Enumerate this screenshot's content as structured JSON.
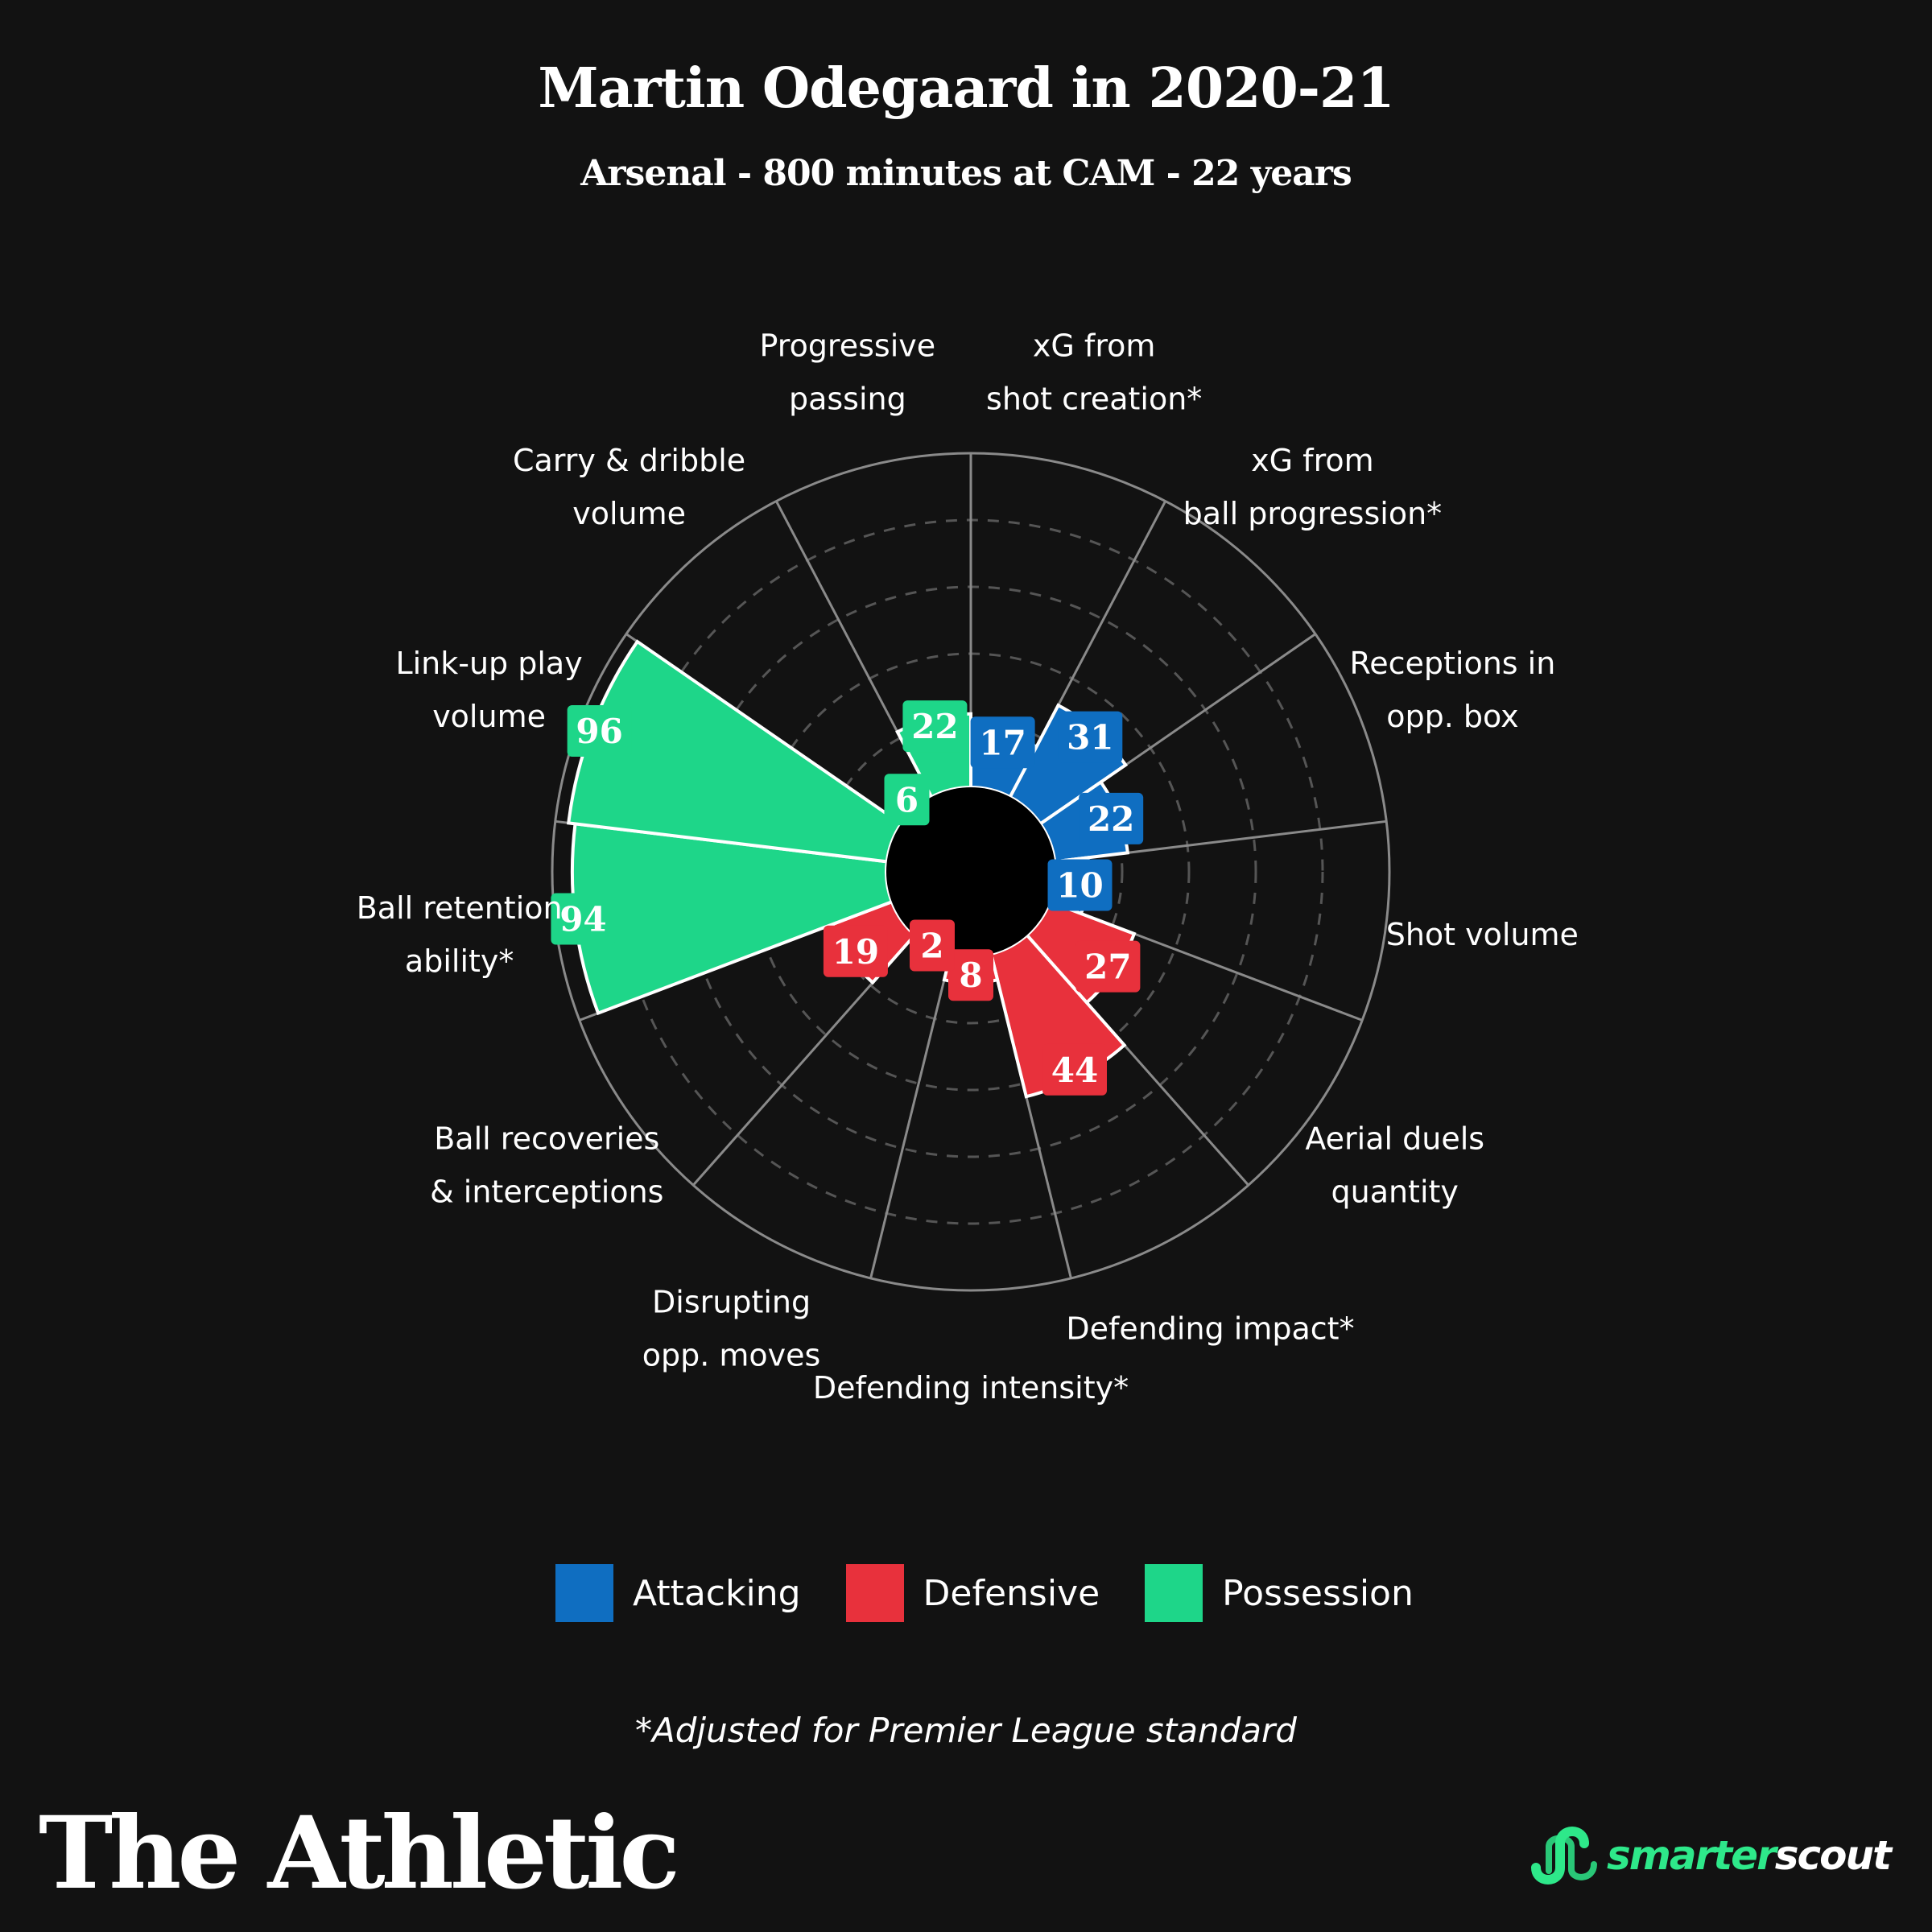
{
  "header": {
    "title": "Martin Odegaard in 2020-21",
    "subtitle": "Arsenal - 800 minutes at CAM - 22 years"
  },
  "colors": {
    "Attacking": "#0f6ec1",
    "Defensive": "#e8313c",
    "Possession": "#1ed689",
    "background": "#121212",
    "grid": "#8a8a8a"
  },
  "chart_data": {
    "type": "polar-bar",
    "title": "Martin Odegaard in 2020-21",
    "subtitle": "Arsenal - 800 minutes at CAM - 22 years",
    "rlim": [
      0,
      100
    ],
    "grid": true,
    "legend_position": "bottom",
    "groups": [
      "Attacking",
      "Defensive",
      "Possession"
    ],
    "categories": [
      {
        "label": "xG from shot creation*",
        "lines": [
          "xG from",
          "shot creation*"
        ],
        "value": 17,
        "group": "Attacking"
      },
      {
        "label": "xG from ball progression*",
        "lines": [
          "xG from",
          "ball progression*"
        ],
        "value": 31,
        "group": "Attacking"
      },
      {
        "label": "Receptions in opp. box",
        "lines": [
          "Receptions in",
          "opp. box"
        ],
        "value": 22,
        "group": "Attacking"
      },
      {
        "label": "Shot volume",
        "lines": [
          "Shot volume"
        ],
        "value": 10,
        "group": "Attacking"
      },
      {
        "label": "Aerial duels quantity",
        "lines": [
          "Aerial duels",
          "quantity"
        ],
        "value": 27,
        "group": "Defensive"
      },
      {
        "label": "Defending impact*",
        "lines": [
          "Defending impact*"
        ],
        "value": 44,
        "group": "Defensive"
      },
      {
        "label": "Defending intensity*",
        "lines": [
          "Defending intensity*"
        ],
        "value": 8,
        "group": "Defensive"
      },
      {
        "label": "Disrupting opp. moves",
        "lines": [
          "Disrupting",
          "opp. moves"
        ],
        "value": 2,
        "group": "Defensive"
      },
      {
        "label": "Ball recoveries & interceptions",
        "lines": [
          "Ball recoveries",
          "& interceptions"
        ],
        "value": 19,
        "group": "Defensive"
      },
      {
        "label": "Ball retention ability*",
        "lines": [
          "Ball retention",
          "ability*"
        ],
        "value": 94,
        "group": "Possession"
      },
      {
        "label": "Link-up play volume",
        "lines": [
          "Link-up play",
          "volume"
        ],
        "value": 96,
        "group": "Possession"
      },
      {
        "label": "Carry & dribble volume",
        "lines": [
          "Carry & dribble",
          "volume"
        ],
        "value": 6,
        "group": "Possession"
      },
      {
        "label": "Progressive passing",
        "lines": [
          "Progressive",
          "passing"
        ],
        "value": 22,
        "group": "Possession"
      }
    ]
  },
  "legend": [
    {
      "name": "Attacking"
    },
    {
      "name": "Defensive"
    },
    {
      "name": "Possession"
    }
  ],
  "footnote": "*Adjusted for Premier League standard",
  "brand": "The Athletic",
  "logo": {
    "part1": "smarter",
    "part2": "scout"
  }
}
